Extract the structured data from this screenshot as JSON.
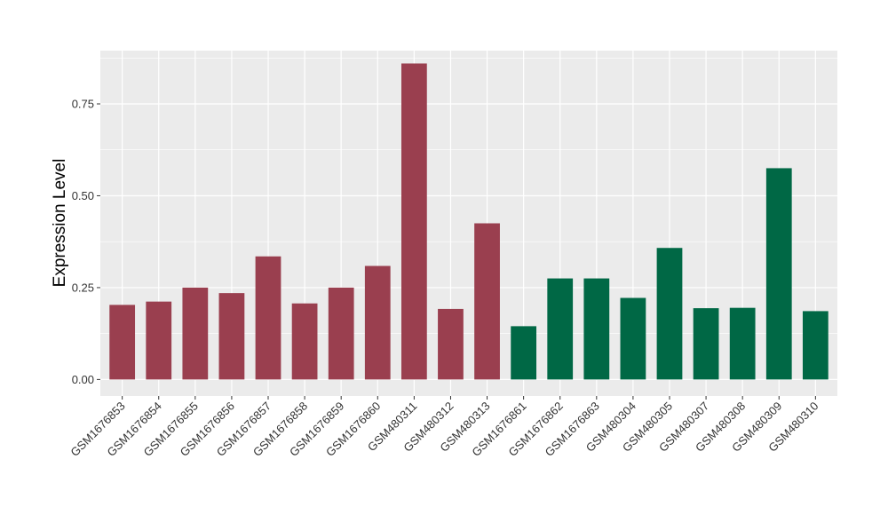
{
  "chart_data": {
    "type": "bar",
    "ylabel": "Expression Level",
    "xlabel": "",
    "ylim": [
      -0.045,
      0.895
    ],
    "yticks": [
      0.0,
      0.25,
      0.5,
      0.75
    ],
    "ytick_labels": [
      "0.00",
      "0.25",
      "0.50",
      "0.75"
    ],
    "grid": true,
    "legend": "none",
    "categories": [
      "GSM1676853",
      "GSM1676854",
      "GSM1676855",
      "GSM1676856",
      "GSM1676857",
      "GSM1676858",
      "GSM1676859",
      "GSM1676860",
      "GSM480311",
      "GSM480312",
      "GSM480313",
      "GSM1676861",
      "GSM1676862",
      "GSM1676863",
      "GSM480304",
      "GSM480305",
      "GSM480307",
      "GSM480308",
      "GSM480309",
      "GSM480310"
    ],
    "values": [
      0.203,
      0.212,
      0.25,
      0.235,
      0.335,
      0.207,
      0.25,
      0.309,
      0.86,
      0.192,
      0.425,
      0.145,
      0.275,
      0.275,
      0.222,
      0.358,
      0.194,
      0.195,
      0.575,
      0.186
    ],
    "colors": [
      "#9a3f4f",
      "#9a3f4f",
      "#9a3f4f",
      "#9a3f4f",
      "#9a3f4f",
      "#9a3f4f",
      "#9a3f4f",
      "#9a3f4f",
      "#9a3f4f",
      "#9a3f4f",
      "#9a3f4f",
      "#006845",
      "#006845",
      "#006845",
      "#006845",
      "#006845",
      "#006845",
      "#006845",
      "#006845",
      "#006845"
    ],
    "panel_background": "#ebebeb",
    "gridline_color": "#ffffff"
  }
}
